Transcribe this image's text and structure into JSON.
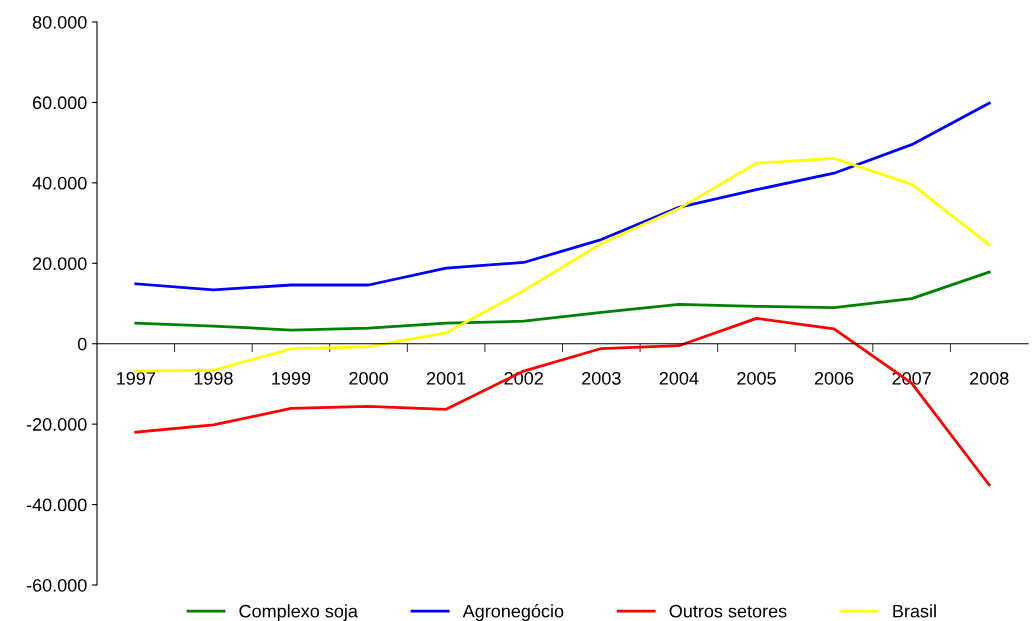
{
  "chart_data": {
    "type": "line",
    "categories": [
      "1997",
      "1998",
      "1999",
      "2000",
      "2001",
      "2002",
      "2003",
      "2004",
      "2005",
      "2006",
      "2007",
      "2008"
    ],
    "series": [
      {
        "name": "Complexo soja",
        "color": "#008000",
        "values": [
          5100,
          4400,
          3400,
          3900,
          5100,
          5600,
          7800,
          9800,
          9300,
          9000,
          11200,
          17800
        ]
      },
      {
        "name": "Agronegócio",
        "color": "#0000ff",
        "values": [
          14900,
          13400,
          14600,
          14600,
          18800,
          20200,
          25900,
          33900,
          38300,
          42400,
          49500,
          59800
        ]
      },
      {
        "name": "Outros setores",
        "color": "#ff0000",
        "values": [
          -22000,
          -20200,
          -16100,
          -15600,
          -16300,
          -6800,
          -1200,
          -500,
          6300,
          3700,
          -9800,
          -35100
        ]
      },
      {
        "name": "Brasil",
        "color": "#ffff00",
        "values": [
          -6800,
          -6600,
          -1300,
          -700,
          2700,
          13200,
          24900,
          33600,
          44900,
          46100,
          39700,
          24600
        ]
      }
    ],
    "ylim": [
      -60000,
      80000
    ],
    "yticks": [
      {
        "value": -60000,
        "label": "-60.000"
      },
      {
        "value": -40000,
        "label": "-40.000"
      },
      {
        "value": -20000,
        "label": "-20.000"
      },
      {
        "value": 0,
        "label": "0"
      },
      {
        "value": 20000,
        "label": "20.000"
      },
      {
        "value": 40000,
        "label": "40.000"
      },
      {
        "value": 60000,
        "label": "60.000"
      },
      {
        "value": 80000,
        "label": "80.000"
      }
    ],
    "grid": false,
    "legend": "bottom",
    "marker": "none",
    "line_style": "solid"
  }
}
